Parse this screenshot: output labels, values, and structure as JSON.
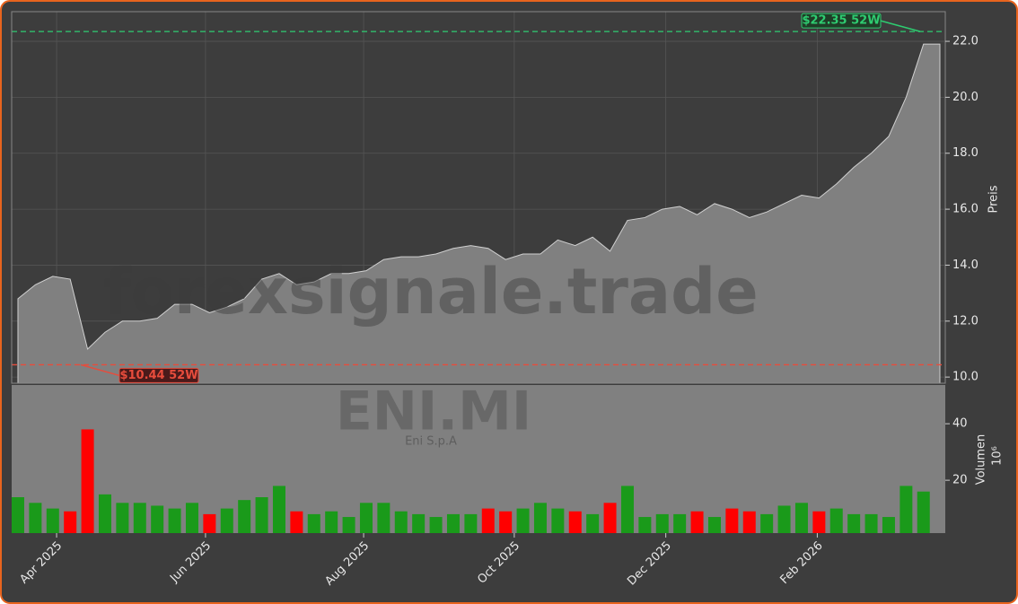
{
  "chart_data": [
    {
      "type": "area",
      "title": "ENI.MI",
      "subtitle": "Eni S.p.A",
      "watermark": "forexsignale.trade",
      "y_label": "Preis",
      "categories": [
        null,
        null,
        null,
        null,
        null,
        null,
        null,
        null,
        null,
        null,
        null,
        null,
        null,
        null,
        null,
        null,
        null,
        null,
        null,
        null,
        null,
        null,
        null,
        null,
        null,
        null,
        null,
        null,
        null,
        null,
        null,
        null,
        null,
        null,
        null,
        null,
        null,
        null,
        null,
        null,
        null,
        null,
        null,
        null,
        null,
        null,
        null,
        null,
        null,
        null,
        null,
        null,
        null
      ],
      "values": [
        12.8,
        13.3,
        13.6,
        13.5,
        11.0,
        11.6,
        12.0,
        12.0,
        12.1,
        12.6,
        12.6,
        12.3,
        12.5,
        12.8,
        13.5,
        13.7,
        13.3,
        13.4,
        13.7,
        13.7,
        13.8,
        14.2,
        14.3,
        14.3,
        14.4,
        14.6,
        14.7,
        14.6,
        14.2,
        14.4,
        14.4,
        14.9,
        14.7,
        15.0,
        14.5,
        15.6,
        15.7,
        16.0,
        16.1,
        15.8,
        16.2,
        16.0,
        15.7,
        15.9,
        16.2,
        16.5,
        16.4,
        16.9,
        17.5,
        18.0,
        18.6,
        20.0,
        21.9
      ],
      "color": "#808080",
      "xlim": [
        -0.36,
        53.25
      ],
      "xticks": [
        {
          "value": 2.22,
          "label": "Apr 2025"
        },
        {
          "value": 10.77,
          "label": "Jun 2025"
        },
        {
          "value": 19.85,
          "label": "Aug 2025"
        },
        {
          "value": 28.5,
          "label": "Oct 2025"
        },
        {
          "value": 37.2,
          "label": "Dec 2025"
        },
        {
          "value": 45.9,
          "label": "Feb 2026"
        }
      ],
      "ylim": [
        9.78,
        23.06
      ],
      "yticks": [
        {
          "value": 10,
          "label": "10.0"
        },
        {
          "value": 12,
          "label": "12.0"
        },
        {
          "value": 14,
          "label": "14.0"
        },
        {
          "value": 16,
          "label": "16.0"
        },
        {
          "value": 18,
          "label": "18.0"
        },
        {
          "value": 20,
          "label": "20.0"
        },
        {
          "value": 22,
          "label": "22.0"
        }
      ],
      "grid": true,
      "annotations": [
        {
          "text": "$22.35 52W",
          "value": 22.35,
          "color": "#2ecc71"
        },
        {
          "text": "$10.44 52W",
          "value": 10.44,
          "color": "#e74c3c"
        }
      ]
    },
    {
      "type": "bar",
      "y_label": "Volumen",
      "y_unit": "10⁶",
      "values": [
        14,
        12,
        10,
        9,
        38,
        15,
        12,
        12,
        11,
        10,
        12,
        8,
        10,
        13,
        14,
        18,
        9,
        8,
        9,
        7,
        12,
        12,
        9,
        8,
        7,
        8,
        8,
        10,
        9,
        10,
        12,
        10,
        9,
        8,
        12,
        18,
        7,
        8,
        8,
        9,
        7,
        10,
        9,
        8,
        11,
        12,
        9,
        10,
        8,
        8,
        7,
        18,
        16
      ],
      "up_color": "#1a9a1a",
      "down_color": "#ff0000",
      "ylim": [
        1.3,
        53.7
      ],
      "yticks": [
        20,
        40
      ]
    }
  ]
}
